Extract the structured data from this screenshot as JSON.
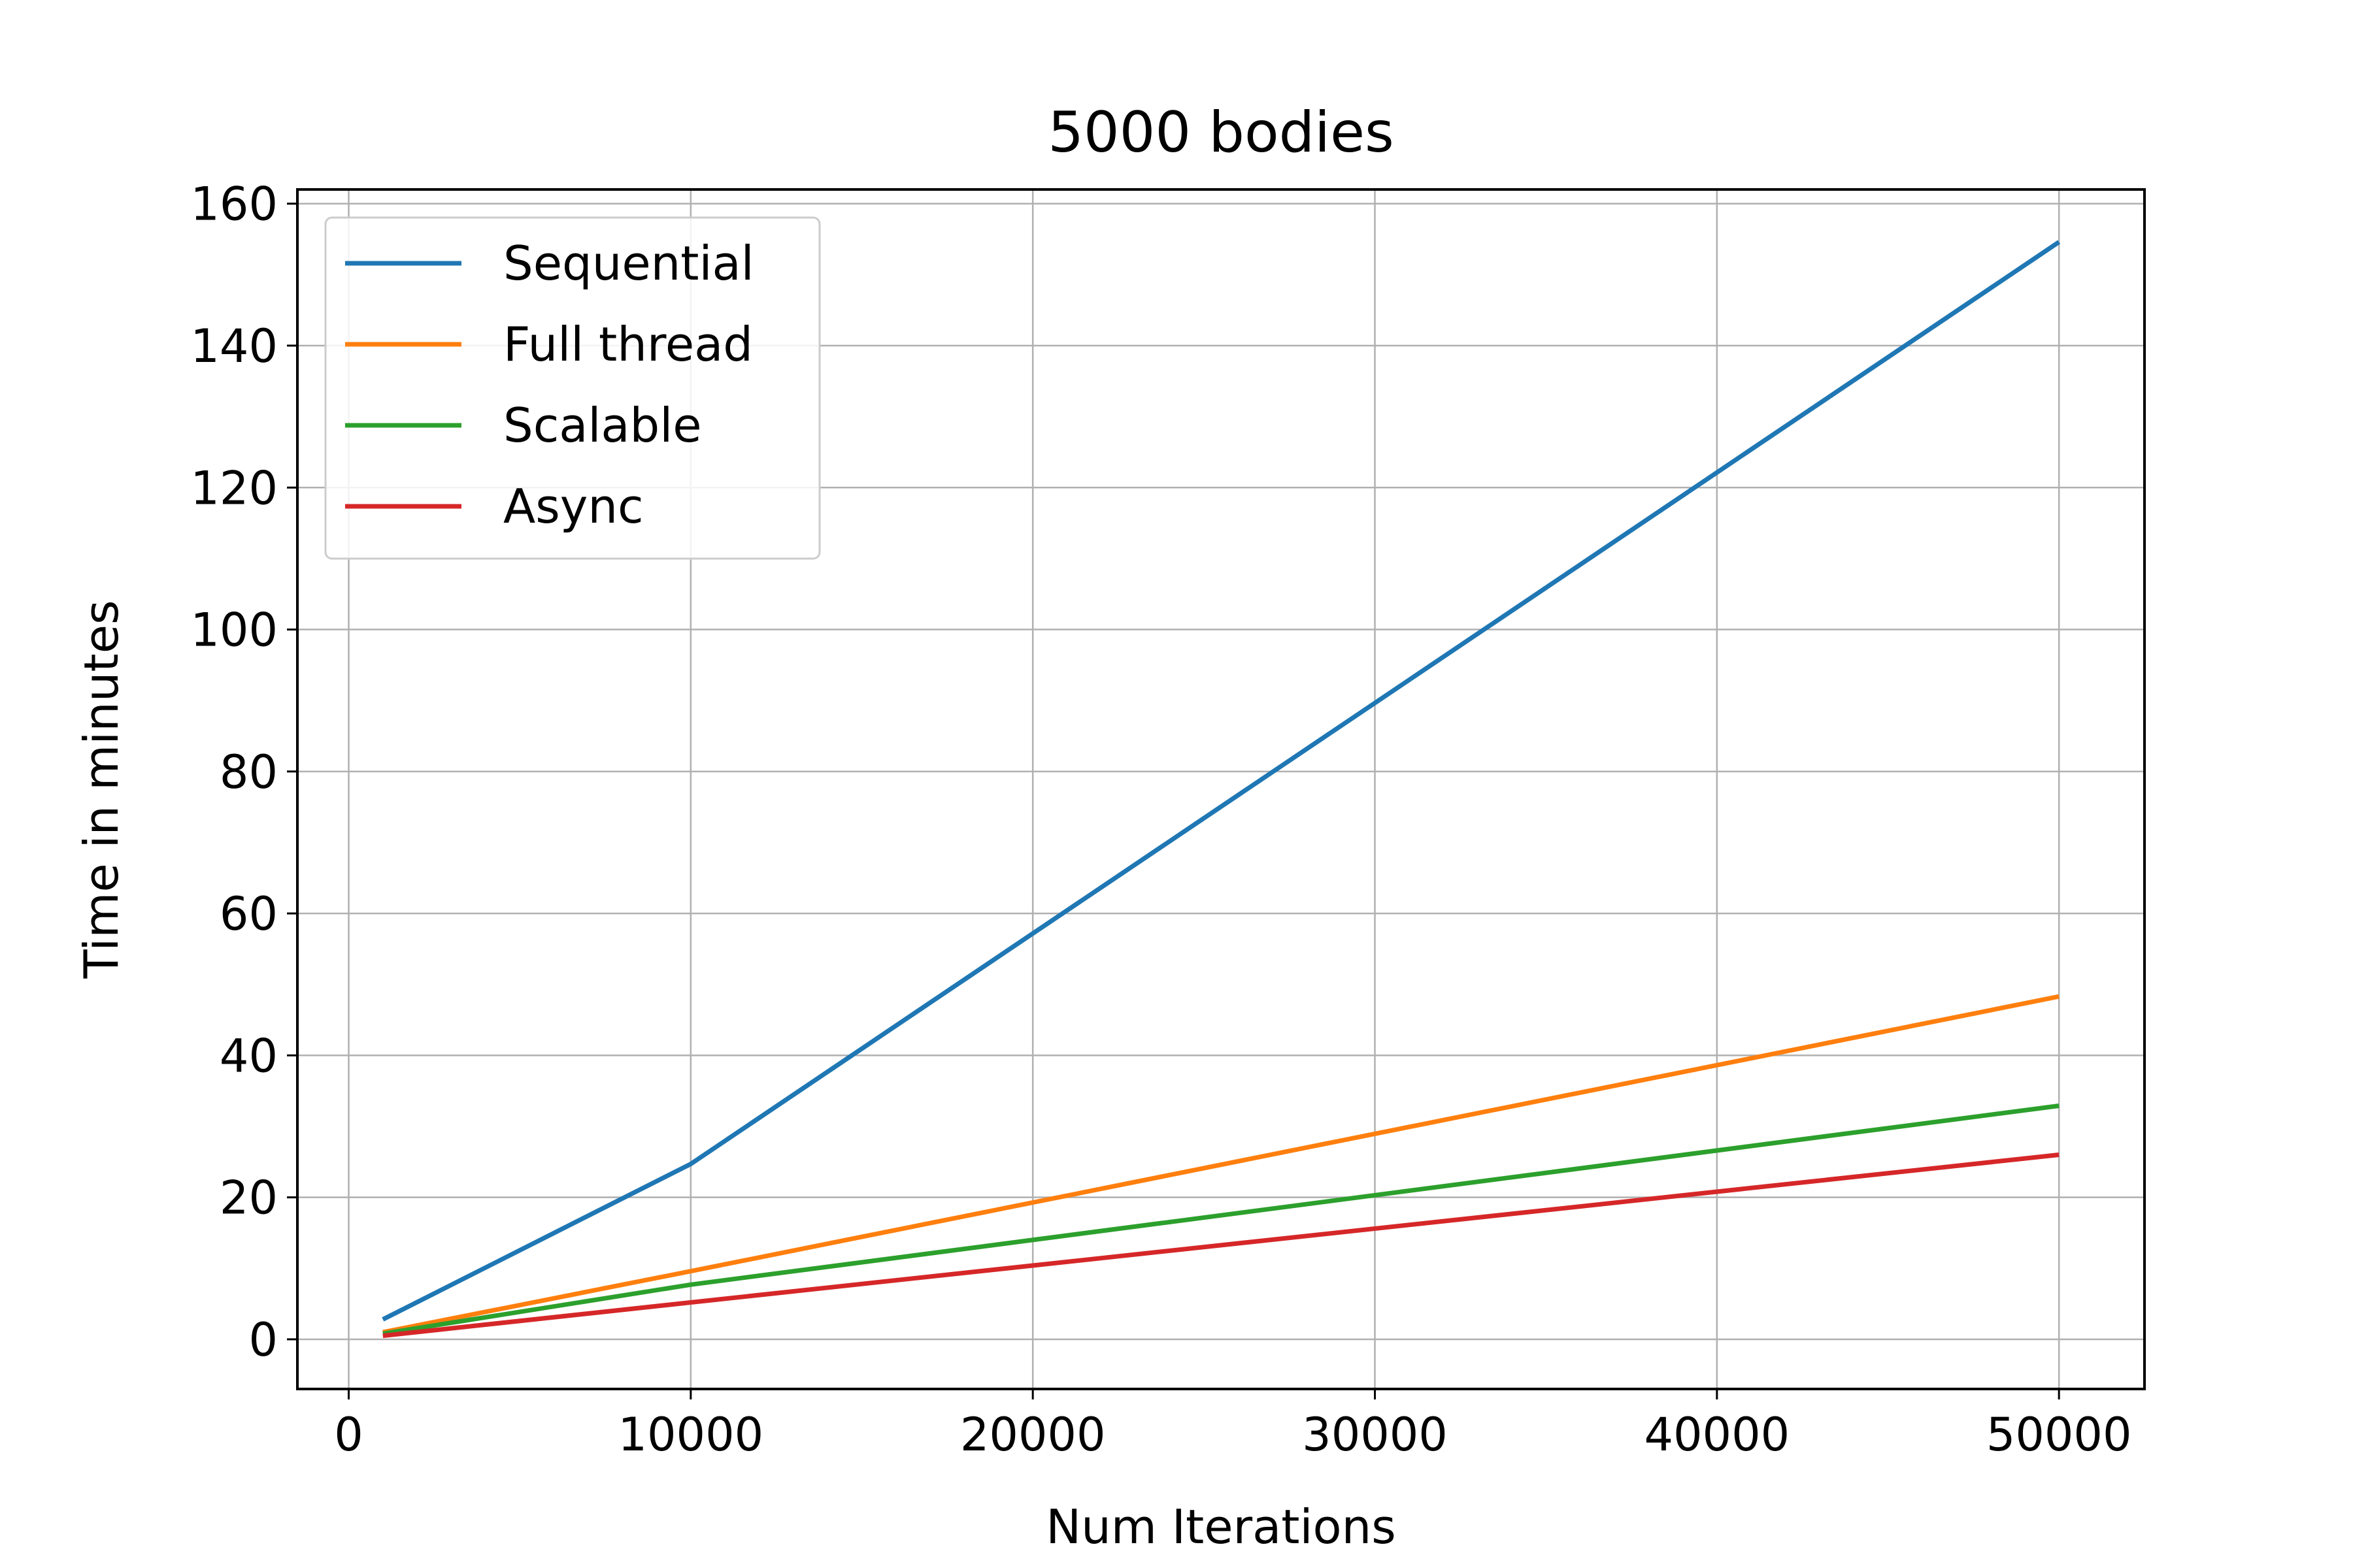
{
  "chart_data": {
    "type": "line",
    "title": "5000 bodies",
    "xlabel": "Num Iterations",
    "ylabel": "Time in minutes",
    "xlim": [
      -1500,
      52500
    ],
    "ylim": [
      -7,
      162
    ],
    "xticks": [
      0,
      10000,
      20000,
      30000,
      40000,
      50000
    ],
    "yticks": [
      0,
      20,
      40,
      60,
      80,
      100,
      120,
      140,
      160
    ],
    "grid": true,
    "legend_position": "top-left",
    "x": [
      1000,
      10000,
      50000
    ],
    "series": [
      {
        "name": "Sequential",
        "color": "#1f77b4",
        "values": [
          2.8,
          24.7,
          154.6
        ]
      },
      {
        "name": "Full thread",
        "color": "#ff7f0e",
        "values": [
          1.0,
          9.6,
          48.3
        ]
      },
      {
        "name": "Scalable",
        "color": "#2ca02c",
        "values": [
          0.8,
          7.7,
          32.9
        ]
      },
      {
        "name": "Async",
        "color": "#d62728",
        "values": [
          0.5,
          5.2,
          26.0
        ]
      }
    ]
  }
}
